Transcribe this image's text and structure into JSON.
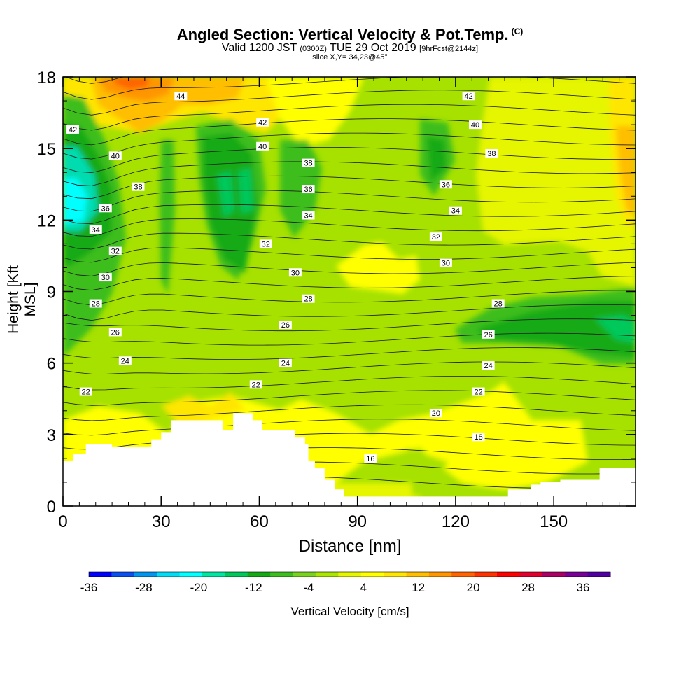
{
  "header": {
    "title": "Angled Section: Vertical Velocity & Pot.Temp.",
    "title_tag": "(C)",
    "subtitle_valid": "Valid 1200 JST",
    "subtitle_utc": "(0300Z)",
    "subtitle_date": "TUE 29 Oct 2019",
    "subtitle_fcst": "[9hrFcst@2144z]",
    "slice": "slice X,Y= 34,23@45°"
  },
  "chart_data": {
    "type": "heatmap",
    "title": "Angled Section: Vertical Velocity & Pot.Temp.",
    "xlabel": "Distance [nm]",
    "ylabel": "Height [Kft MSL]",
    "xlim": [
      0,
      175
    ],
    "ylim": [
      0,
      18
    ],
    "x_ticks": [
      "0",
      "30",
      "60",
      "90",
      "120",
      "150"
    ],
    "y_ticks": [
      "0",
      "3",
      "6",
      "9",
      "12",
      "15",
      "18"
    ],
    "fill_variable": "Vertical Velocity [cm/s]",
    "colorbar": {
      "label": "Vertical Velocity [cm/s]",
      "tick_labels": [
        "-36",
        "-28",
        "-20",
        "-12",
        "-4",
        "4",
        "12",
        "20",
        "28",
        "36"
      ],
      "colors": [
        "#0000ff",
        "#0a50f0",
        "#0096f0",
        "#00dcf5",
        "#00ffff",
        "#00e6a0",
        "#00c85a",
        "#14aa14",
        "#3cbe1e",
        "#78d21e",
        "#aae600",
        "#e6f500",
        "#ffff00",
        "#ffe600",
        "#ffbe00",
        "#ff9600",
        "#ff6400",
        "#ff3200",
        "#ff0000",
        "#e1002d",
        "#aa0064",
        "#780096",
        "#5000a0"
      ]
    },
    "isentrope_labels": [
      {
        "label": "44",
        "x": 36,
        "y": 17.2
      },
      {
        "label": "42",
        "x": 3,
        "y": 15.8
      },
      {
        "label": "42",
        "x": 61,
        "y": 16.1
      },
      {
        "label": "42",
        "x": 124,
        "y": 17.2
      },
      {
        "label": "40",
        "x": 16,
        "y": 14.7
      },
      {
        "label": "40",
        "x": 61,
        "y": 15.1
      },
      {
        "label": "40",
        "x": 126,
        "y": 16.0
      },
      {
        "label": "38",
        "x": 23,
        "y": 13.4
      },
      {
        "label": "38",
        "x": 75,
        "y": 14.4
      },
      {
        "label": "38",
        "x": 131,
        "y": 14.8
      },
      {
        "label": "36",
        "x": 13,
        "y": 12.5
      },
      {
        "label": "36",
        "x": 75,
        "y": 13.3
      },
      {
        "label": "36",
        "x": 117,
        "y": 13.5
      },
      {
        "label": "34",
        "x": 10,
        "y": 11.6
      },
      {
        "label": "34",
        "x": 75,
        "y": 12.2
      },
      {
        "label": "34",
        "x": 120,
        "y": 12.4
      },
      {
        "label": "32",
        "x": 16,
        "y": 10.7
      },
      {
        "label": "32",
        "x": 62,
        "y": 11.0
      },
      {
        "label": "32",
        "x": 114,
        "y": 11.3
      },
      {
        "label": "30",
        "x": 13,
        "y": 9.6
      },
      {
        "label": "30",
        "x": 71,
        "y": 9.8
      },
      {
        "label": "30",
        "x": 117,
        "y": 10.2
      },
      {
        "label": "28",
        "x": 10,
        "y": 8.5
      },
      {
        "label": "28",
        "x": 75,
        "y": 8.7
      },
      {
        "label": "28",
        "x": 133,
        "y": 8.5
      },
      {
        "label": "26",
        "x": 16,
        "y": 7.3
      },
      {
        "label": "26",
        "x": 68,
        "y": 7.6
      },
      {
        "label": "26",
        "x": 130,
        "y": 7.2
      },
      {
        "label": "24",
        "x": 19,
        "y": 6.1
      },
      {
        "label": "24",
        "x": 68,
        "y": 6.0
      },
      {
        "label": "24",
        "x": 130,
        "y": 5.9
      },
      {
        "label": "22",
        "x": 7,
        "y": 4.8
      },
      {
        "label": "22",
        "x": 59,
        "y": 5.1
      },
      {
        "label": "22",
        "x": 127,
        "y": 4.8
      },
      {
        "label": "20",
        "x": 114,
        "y": 3.9
      },
      {
        "label": "18",
        "x": 127,
        "y": 2.9
      },
      {
        "label": "16",
        "x": 94,
        "y": 2.0
      }
    ],
    "terrain": [
      [
        0,
        1.9
      ],
      [
        3,
        1.9
      ],
      [
        3,
        2.2
      ],
      [
        7,
        2.2
      ],
      [
        7,
        2.6
      ],
      [
        15,
        2.6
      ],
      [
        15,
        2.5
      ],
      [
        27,
        2.5
      ],
      [
        27,
        2.8
      ],
      [
        30,
        2.8
      ],
      [
        30,
        3.1
      ],
      [
        33,
        3.1
      ],
      [
        33,
        3.6
      ],
      [
        49,
        3.6
      ],
      [
        49,
        3.2
      ],
      [
        52,
        3.2
      ],
      [
        52,
        3.9
      ],
      [
        58,
        3.9
      ],
      [
        58,
        3.6
      ],
      [
        61,
        3.6
      ],
      [
        61,
        3.2
      ],
      [
        71,
        3.2
      ],
      [
        71,
        2.9
      ],
      [
        74,
        2.9
      ],
      [
        74,
        2.6
      ],
      [
        75,
        2.6
      ],
      [
        75,
        1.9
      ],
      [
        77,
        1.9
      ],
      [
        77,
        1.6
      ],
      [
        80,
        1.6
      ],
      [
        80,
        1.1
      ],
      [
        83,
        1.1
      ],
      [
        83,
        0.7
      ],
      [
        86,
        0.7
      ],
      [
        86,
        0.4
      ],
      [
        89,
        0.4
      ],
      [
        89,
        0.4
      ],
      [
        136,
        0.4
      ],
      [
        136,
        0.7
      ],
      [
        143,
        0.7
      ],
      [
        143,
        0.9
      ],
      [
        146,
        0.9
      ],
      [
        146,
        1.0
      ],
      [
        152,
        1.0
      ],
      [
        152,
        1.1
      ],
      [
        164,
        1.1
      ],
      [
        164,
        1.6
      ],
      [
        175,
        1.6
      ]
    ],
    "grid": false
  }
}
